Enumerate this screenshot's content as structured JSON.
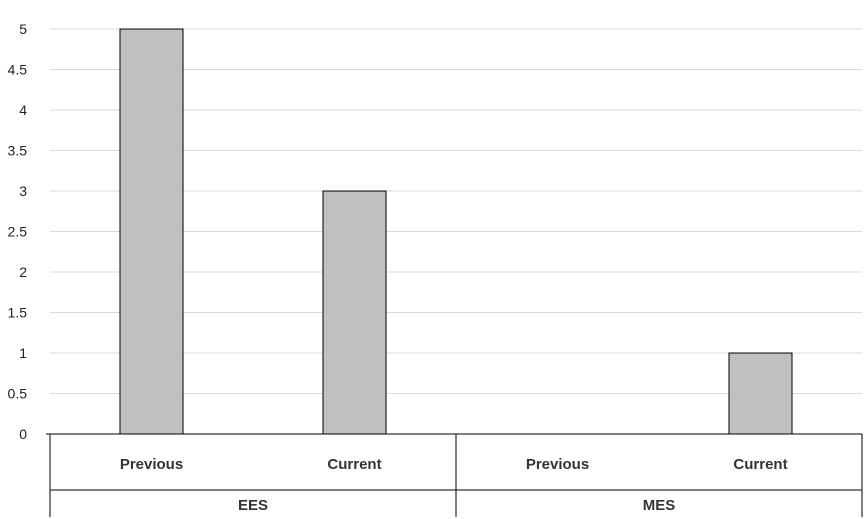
{
  "chart_data": {
    "type": "bar",
    "title": "",
    "xlabel": "",
    "ylabel": "",
    "ylim": [
      0,
      5
    ],
    "yticks": [
      "0",
      "0.5",
      "1",
      "1.5",
      "2",
      "2.5",
      "3",
      "3.5",
      "4",
      "4.5",
      "5"
    ],
    "grid": true,
    "legend": "none",
    "groups": [
      {
        "name": "EES",
        "categories": [
          "Previous",
          "Current"
        ],
        "values": [
          5,
          3
        ]
      },
      {
        "name": "MES",
        "categories": [
          "Previous",
          "Current"
        ],
        "values": [
          0,
          1
        ]
      }
    ],
    "colors": {
      "bar_fill": "#c0c0c0",
      "bar_stroke": "#000000",
      "grid": "#d9d9d9",
      "axis": "#000000"
    }
  }
}
